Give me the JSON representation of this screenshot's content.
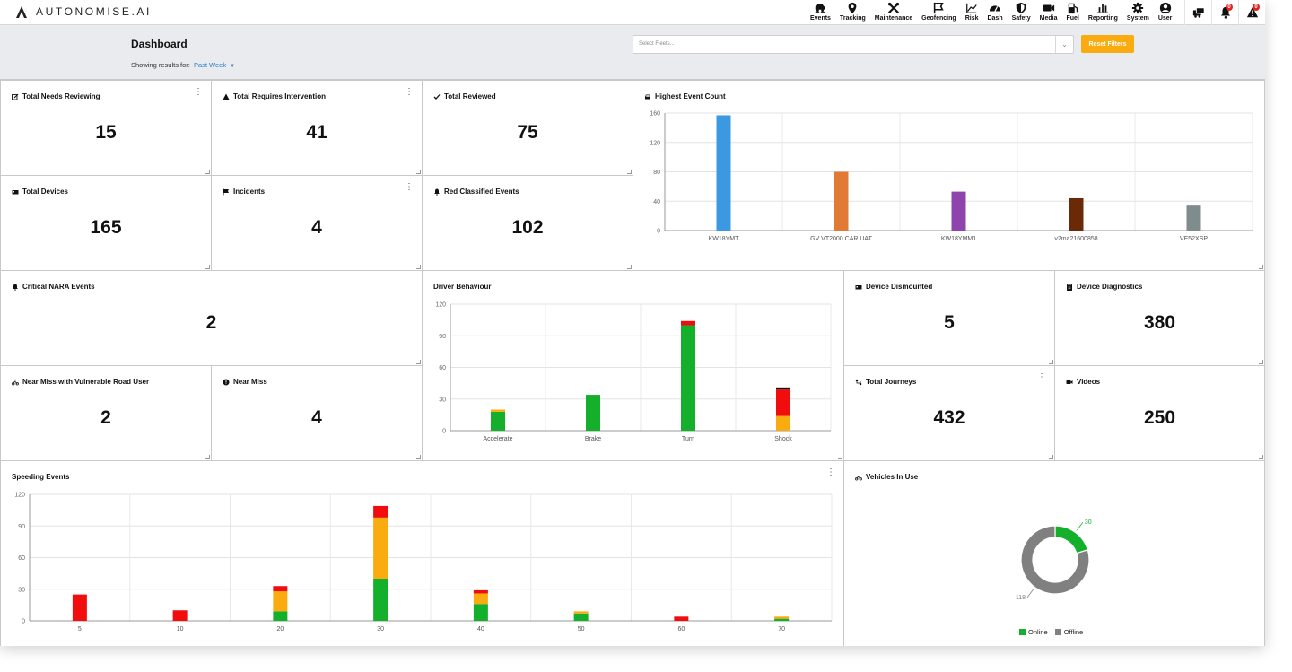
{
  "app": {
    "logo_text": "AUTONOMISE.AI"
  },
  "nav": [
    {
      "id": "events",
      "label": "Events",
      "icon": "events-icon"
    },
    {
      "id": "tracking",
      "label": "Tracking",
      "icon": "map-pin-icon"
    },
    {
      "id": "maintenance",
      "label": "Maintenance",
      "icon": "tools-icon"
    },
    {
      "id": "geofencing",
      "label": "Geofencing",
      "icon": "geofence-flag-icon"
    },
    {
      "id": "risk",
      "label": "Risk",
      "icon": "line-chart-icon"
    },
    {
      "id": "dash",
      "label": "Dash",
      "icon": "gauge-icon"
    },
    {
      "id": "safety",
      "label": "Safety",
      "icon": "shield-icon"
    },
    {
      "id": "media",
      "label": "Media",
      "icon": "video-camera-icon"
    },
    {
      "id": "fuel",
      "label": "Fuel",
      "icon": "fuel-pump-icon"
    },
    {
      "id": "reporting",
      "label": "Reporting",
      "icon": "bar-chart-icon"
    },
    {
      "id": "system",
      "label": "System",
      "icon": "gear-icon"
    },
    {
      "id": "user",
      "label": "User",
      "icon": "user-circle-icon"
    }
  ],
  "actions": [
    {
      "id": "fleet",
      "icon": "vehicles-icon",
      "badge": ""
    },
    {
      "id": "notifications",
      "icon": "bell-icon",
      "badge": "0"
    },
    {
      "id": "alerts",
      "icon": "warning-icon",
      "badge": "0"
    }
  ],
  "header": {
    "title": "Dashboard",
    "showing_label": "Showing results for:",
    "period": "Past Week",
    "fleet_placeholder": "Select Fleets...",
    "reset_label": "Reset Filters"
  },
  "cards": {
    "needs_reviewing": {
      "title": "Total Needs Reviewing",
      "value": "15",
      "icon": "edit-icon"
    },
    "requires_intervention": {
      "title": "Total Requires Intervention",
      "value": "41",
      "icon": "warning-icon"
    },
    "reviewed": {
      "title": "Total Reviewed",
      "value": "75",
      "icon": "check-icon"
    },
    "devices": {
      "title": "Total Devices",
      "value": "165",
      "icon": "device-icon"
    },
    "incidents": {
      "title": "Incidents",
      "value": "4",
      "icon": "flag-icon"
    },
    "red_classified": {
      "title": "Red Classified Events",
      "value": "102",
      "icon": "bell-icon"
    },
    "critical_nara": {
      "title": "Critical NARA Events",
      "value": "2",
      "icon": "bell-icon"
    },
    "near_miss_vru": {
      "title": "Near Miss with Vulnerable Road User",
      "value": "2",
      "icon": "cyclist-icon"
    },
    "near_miss": {
      "title": "Near Miss",
      "value": "4",
      "icon": "exclamation-circle-icon"
    },
    "device_dismounted": {
      "title": "Device Dismounted",
      "value": "5",
      "icon": "device-icon"
    },
    "device_diagnostics": {
      "title": "Device Diagnostics",
      "value": "380",
      "icon": "clipboard-icon"
    },
    "total_journeys": {
      "title": "Total Journeys",
      "value": "432",
      "icon": "route-icon"
    },
    "videos": {
      "title": "Videos",
      "value": "250",
      "icon": "video-camera-icon"
    }
  },
  "colors": {
    "green": "#14b02c",
    "orange": "#f9ab0f",
    "red": "#f10d0d",
    "black": "#111111",
    "gray": "#808080",
    "accent": "#2a7ac9"
  },
  "chart_data": [
    {
      "id": "highest_event_count",
      "title": "Highest Event Count",
      "type": "bar",
      "categories": [
        "KW18YMT",
        "GV VT2000 CAR UAT",
        "KW18YMM1",
        "v2ma21600858",
        "VE52XSP"
      ],
      "values": [
        157,
        80,
        53,
        44,
        34
      ],
      "bar_colors": [
        "#3a99e0",
        "#e07a34",
        "#8e44ad",
        "#6b2a07",
        "#7f8c8d"
      ],
      "yticks": [
        0,
        40,
        80,
        120,
        160
      ],
      "ylim": [
        0,
        160
      ],
      "grid": true
    },
    {
      "id": "driver_behaviour",
      "title": "Driver Behaviour",
      "type": "bar",
      "stacked": true,
      "categories": [
        "Accelerate",
        "Brake",
        "Turn",
        "Shock"
      ],
      "series": [
        {
          "color": "#14b02c",
          "values": [
            18,
            34,
            100,
            0
          ]
        },
        {
          "color": "#f9ab0f",
          "values": [
            2,
            0,
            0,
            14
          ]
        },
        {
          "color": "#f10d0d",
          "values": [
            0,
            0,
            4,
            25
          ]
        },
        {
          "color": "#111111",
          "values": [
            0,
            0,
            0,
            2
          ]
        }
      ],
      "yticks": [
        0,
        30,
        60,
        90,
        120
      ],
      "ylim": [
        0,
        120
      ],
      "grid": true
    },
    {
      "id": "speeding_events",
      "title": "Speeding Events",
      "type": "bar",
      "stacked": true,
      "categories": [
        "5",
        "10",
        "20",
        "30",
        "40",
        "50",
        "60",
        "70"
      ],
      "series": [
        {
          "color": "#14b02c",
          "values": [
            0,
            0,
            9,
            40,
            16,
            7,
            0,
            2
          ]
        },
        {
          "color": "#f9ab0f",
          "values": [
            0,
            0,
            19,
            58,
            10,
            2,
            0,
            2
          ]
        },
        {
          "color": "#f10d0d",
          "values": [
            25,
            10,
            5,
            11,
            3,
            0,
            4,
            0
          ]
        }
      ],
      "yticks": [
        0,
        30,
        60,
        90,
        120
      ],
      "ylim": [
        0,
        120
      ],
      "grid": true
    },
    {
      "id": "vehicles_in_use",
      "title": "Vehicles In Use",
      "type": "pie",
      "donut": true,
      "labels": [
        "Online",
        "Offline"
      ],
      "values": [
        30,
        118
      ],
      "colors": [
        "#14b02c",
        "#808080"
      ],
      "legend": "bottom"
    }
  ]
}
